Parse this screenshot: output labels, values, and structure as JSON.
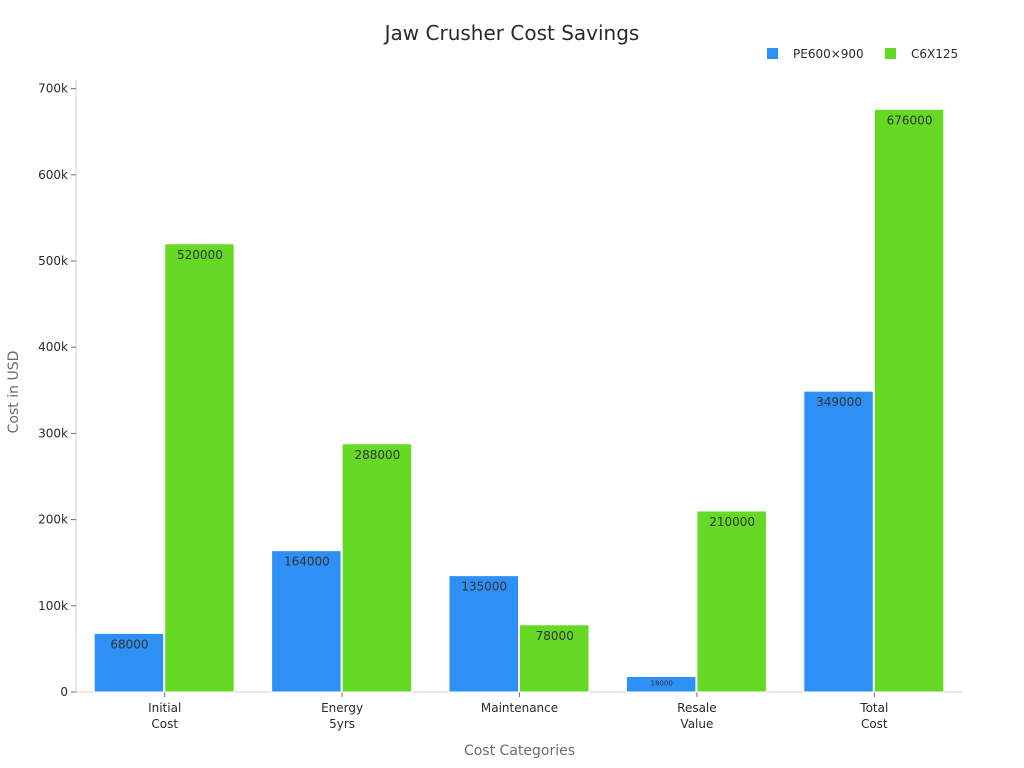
{
  "chart_data": {
    "type": "bar",
    "title": "Jaw Crusher Cost Savings",
    "xlabel": "Cost Categories",
    "ylabel": "Cost in USD",
    "categories": [
      [
        "Initial",
        "Cost"
      ],
      [
        "Energy",
        "5yrs"
      ],
      [
        "Maintenance"
      ],
      [
        "Resale",
        "Value"
      ],
      [
        "Total",
        "Cost"
      ]
    ],
    "series": [
      {
        "name": "PE600×900",
        "color": "#2e90f5",
        "values": [
          68000,
          164000,
          135000,
          18000,
          349000
        ],
        "labels": [
          "68000",
          "164000",
          "135000",
          "18000",
          "349000"
        ]
      },
      {
        "name": "C6X125",
        "color": "#66d925",
        "values": [
          520000,
          288000,
          78000,
          210000,
          676000
        ],
        "labels": [
          "520000",
          "288000",
          "78000",
          "210000",
          "676000"
        ]
      }
    ],
    "ylim": [
      0,
      710000
    ],
    "yticks": [
      0,
      100000,
      200000,
      300000,
      400000,
      500000,
      600000,
      700000
    ],
    "ytick_labels": [
      "0",
      "100k",
      "200k",
      "300k",
      "400k",
      "500k",
      "600k",
      "700k"
    ],
    "legend_position": "top-right",
    "grid": false
  }
}
